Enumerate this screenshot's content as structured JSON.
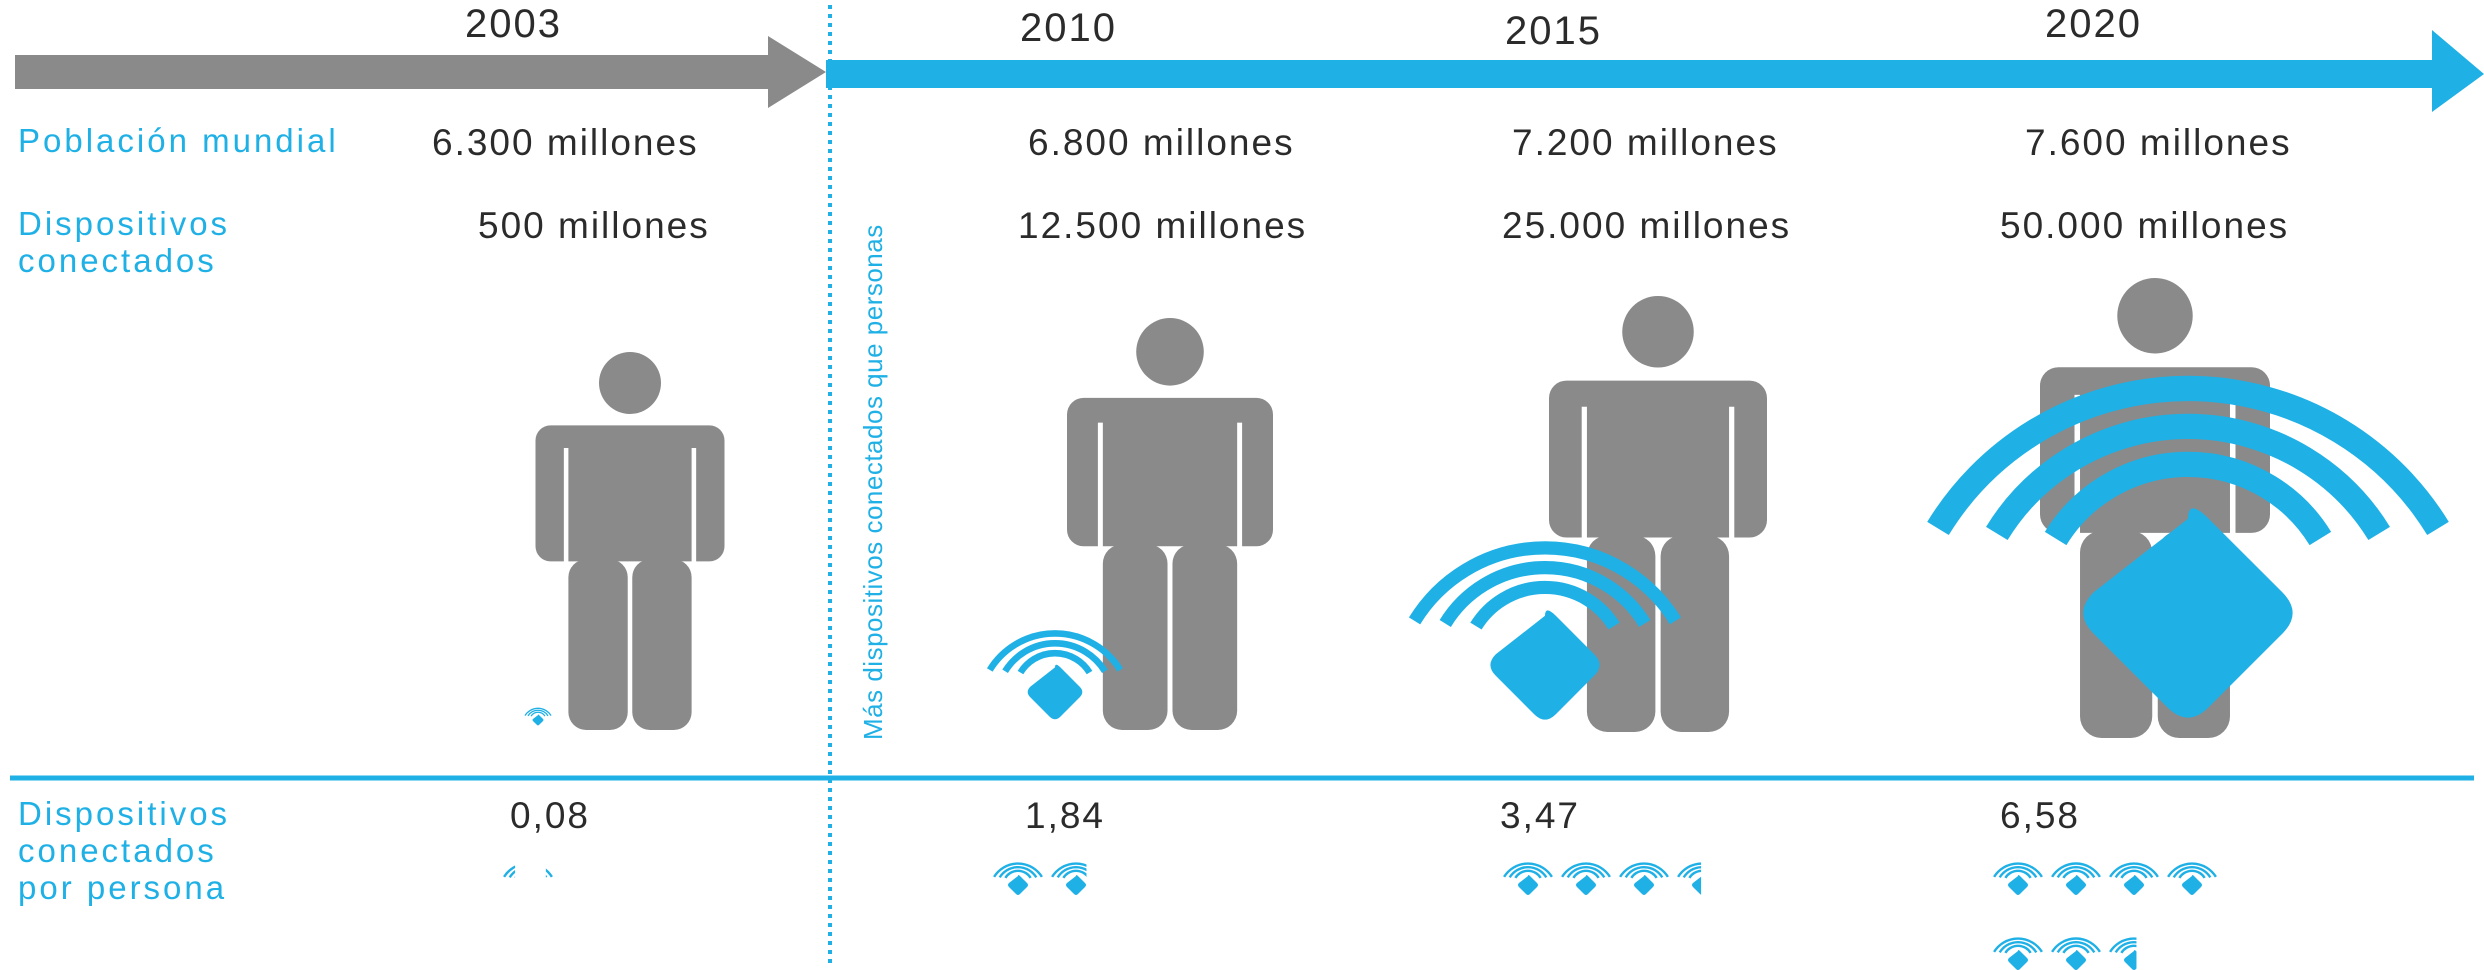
{
  "timeline": {
    "years": [
      "2003",
      "2010",
      "2015",
      "2020"
    ],
    "divider_note": "Más dispositivos conectados que personas",
    "colors": {
      "past": "#8a8a8a",
      "future": "#1fb0e6",
      "text": "#2b2b2b"
    }
  },
  "rows": {
    "population": {
      "label": "Población mundial",
      "values": [
        "6.300 millones",
        "6.800 millones",
        "7.200 millones",
        "7.600 millones"
      ]
    },
    "devices": {
      "label_line1": "Dispositivos",
      "label_line2": "conectados",
      "values": [
        "500 millones",
        "12.500 millones",
        "25.000 millones",
        "50.000 millones"
      ]
    },
    "per_person": {
      "label_line1": "Dispositivos",
      "label_line2": "conectados",
      "label_line3": "por persona",
      "values": [
        "0,08",
        "1,84",
        "3,47",
        "6,58"
      ],
      "numeric": [
        0.08,
        1.84,
        3.47,
        6.58
      ]
    }
  },
  "icons": {
    "person": "person-icon",
    "device": "wifi-device-icon"
  }
}
